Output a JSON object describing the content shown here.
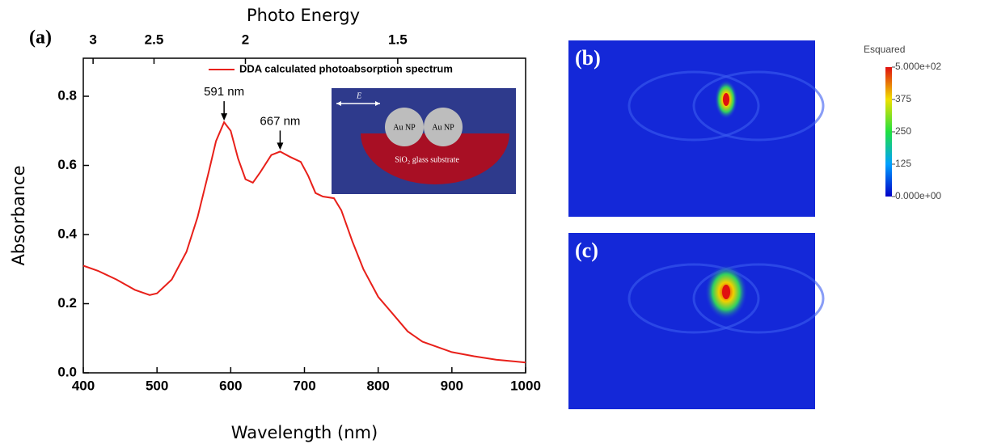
{
  "chart_data": {
    "type": "line",
    "panel_label": "(a)",
    "x_label": "Wavelength (nm)",
    "y_label": "Absorbance",
    "x2_label": "Photo Energy",
    "x": [
      400,
      420,
      445,
      470,
      490,
      500,
      520,
      540,
      555,
      570,
      580,
      591,
      600,
      610,
      620,
      630,
      640,
      655,
      667,
      680,
      695,
      705,
      715,
      725,
      740,
      750,
      765,
      780,
      800,
      820,
      840,
      860,
      880,
      900,
      930,
      960,
      1000
    ],
    "series": [
      {
        "name": "DDA calculated photoabsorption spectrum",
        "color": "#e8201a",
        "values": [
          0.31,
          0.295,
          0.27,
          0.24,
          0.225,
          0.23,
          0.27,
          0.35,
          0.45,
          0.58,
          0.67,
          0.725,
          0.7,
          0.62,
          0.56,
          0.55,
          0.58,
          0.63,
          0.64,
          0.625,
          0.61,
          0.57,
          0.52,
          0.51,
          0.505,
          0.47,
          0.38,
          0.3,
          0.22,
          0.17,
          0.12,
          0.09,
          0.075,
          0.06,
          0.048,
          0.038,
          0.03
        ]
      }
    ],
    "xlim": [
      400,
      1000
    ],
    "xticks": [
      400,
      500,
      600,
      700,
      800,
      900,
      1000
    ],
    "ylim": [
      0,
      0.91
    ],
    "yticks": [
      {
        "value": 0,
        "label": "0.0"
      },
      0.2,
      0.4,
      0.6,
      0.8
    ],
    "x2ticks": [
      3,
      2.5,
      2,
      1.5
    ],
    "annotations": [
      {
        "text": "591 nm",
        "x": 591,
        "y": 0.725
      },
      {
        "text": "667 nm",
        "x": 667,
        "y": 0.64
      }
    ],
    "legend": "top-right"
  },
  "inset": {
    "field": "E",
    "particles": [
      "Au NP",
      "Au NP"
    ],
    "substrate": "SiO₂ glass substrate"
  },
  "field_maps": {
    "panels": [
      {
        "label": "(b)"
      },
      {
        "label": "(c)"
      }
    ],
    "colorbar": {
      "title": "Esquared",
      "lim": [
        0,
        500
      ],
      "ticks": [
        {
          "value": 500,
          "label": "5.000e+02"
        },
        375,
        250,
        125,
        {
          "value": 0,
          "label": "0.000e+00"
        }
      ]
    }
  }
}
